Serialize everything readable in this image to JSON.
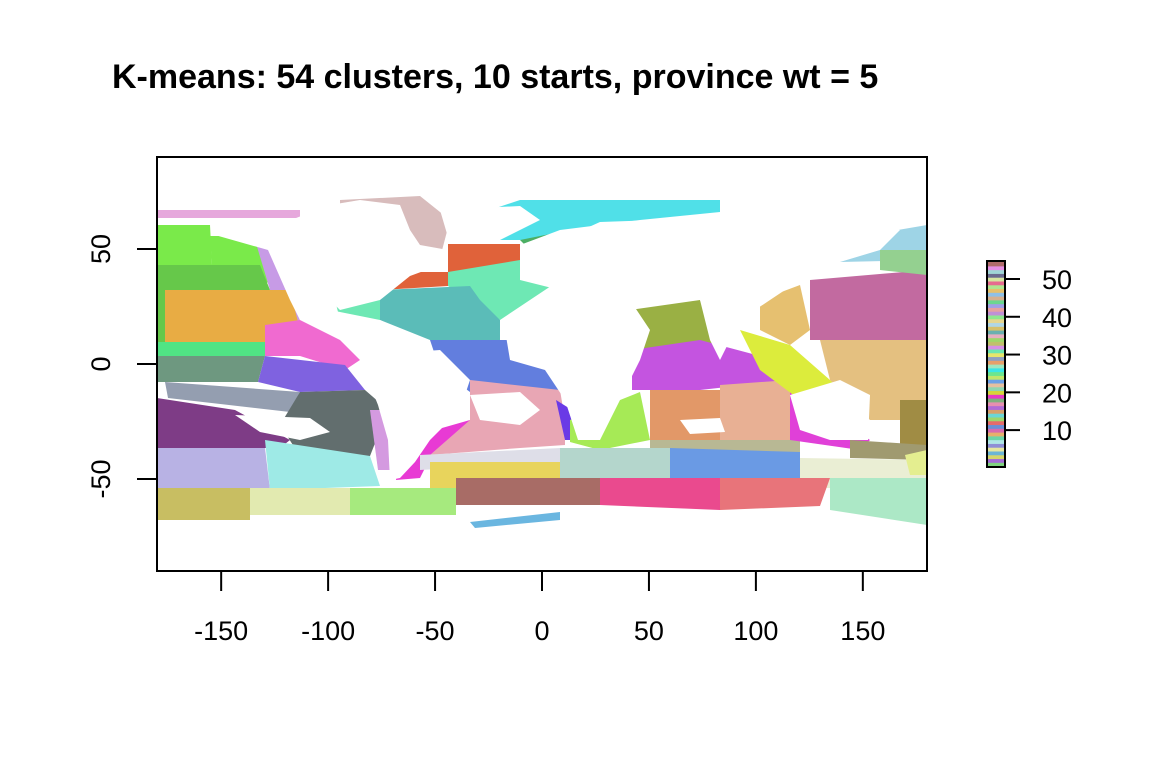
{
  "title": "K-means: 54 clusters, 10 starts, province wt = 5",
  "map": {
    "x_range": [
      -180,
      180
    ],
    "y_range": [
      -90,
      90
    ],
    "x_ticks": [
      -150,
      -100,
      -50,
      0,
      50,
      100,
      150
    ],
    "y_ticks": [
      -50,
      0,
      50
    ]
  },
  "legend": {
    "range": [
      1,
      54
    ],
    "ticks": [
      10,
      20,
      30,
      40,
      50
    ],
    "bar_colors": [
      "#7fd37f",
      "#a36bd6",
      "#d6d66b",
      "#6bb5d6",
      "#e6e6a0",
      "#8f8fd6",
      "#b0e6e6",
      "#6bd6a6",
      "#e6b06b",
      "#d66bb0",
      "#6b8fd6",
      "#e66b6b",
      "#9ed66b",
      "#6bd6d6",
      "#d6a06b",
      "#b06bd6",
      "#e68fb0",
      "#7fb07f",
      "#e63ac8",
      "#d6d63a",
      "#8fd6b0",
      "#e6c0a0",
      "#6ba0e6",
      "#c0e66b",
      "#6be68f",
      "#3ae6e6",
      "#a0e6c0",
      "#e6a06b",
      "#8fa0c0",
      "#e6e66b",
      "#6be6b0",
      "#d68fe6",
      "#c0c06b",
      "#a0d66b",
      "#e6b0c0",
      "#6bb0b0",
      "#d6c06b",
      "#b0d6e6",
      "#e6d68f",
      "#8fe68f",
      "#c08fd6",
      "#e6a0a0",
      "#a0a0e6",
      "#6bd68f",
      "#d6b08f",
      "#8fc0e6",
      "#e6c06b",
      "#b0e68f",
      "#e66b8f",
      "#d6e6a0",
      "#6b6b8f",
      "#a0d6d6",
      "#e68fe6",
      "#b06b6b"
    ]
  }
}
